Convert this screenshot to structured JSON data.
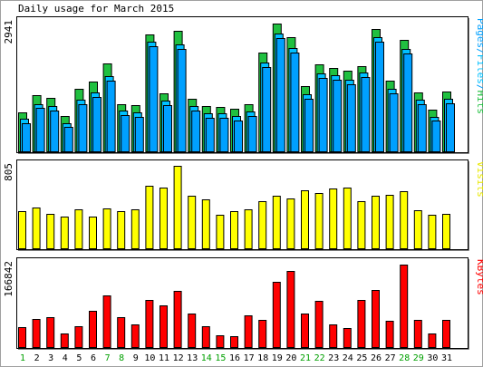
{
  "chart_data": [
    {
      "type": "bar",
      "title": "Daily usage for March 2015",
      "ylabel_max": "2941",
      "legend": [
        {
          "text": "Pages",
          "color": "#00a0ff"
        },
        {
          "text": "/",
          "color": "#00a0ff"
        },
        {
          "text": "Files",
          "color": "#00c0ff"
        },
        {
          "text": "/",
          "color": "#00a0ff"
        },
        {
          "text": "Hits",
          "color": "#20c040"
        }
      ],
      "ylim": [
        0,
        2941
      ],
      "categories": [
        "1",
        "2",
        "3",
        "4",
        "5",
        "6",
        "7",
        "8",
        "9",
        "10",
        "11",
        "12",
        "13",
        "14",
        "15",
        "16",
        "17",
        "18",
        "19",
        "20",
        "21",
        "22",
        "23",
        "24",
        "25",
        "26",
        "27",
        "28",
        "29",
        "30",
        "31"
      ],
      "series": [
        {
          "name": "Hits",
          "color": "#20c040",
          "values": [
            900,
            1280,
            1220,
            810,
            1420,
            1600,
            2000,
            1080,
            1060,
            2680,
            1330,
            2760,
            1200,
            1040,
            1020,
            970,
            1080,
            2260,
            2920,
            2600,
            1500,
            1980,
            1900,
            1840,
            1940,
            2800,
            1610,
            2540,
            1350,
            960,
            1370
          ]
        },
        {
          "name": "Files",
          "color": "#00c0ff",
          "values": [
            820,
            1170,
            1120,
            730,
            1260,
            1420,
            1800,
            1010,
            970,
            2580,
            1240,
            2520,
            1110,
            960,
            950,
            890,
            990,
            2120,
            2780,
            2440,
            1380,
            1860,
            1820,
            1710,
            1880,
            2700,
            1520,
            2430,
            1270,
            880,
            1290
          ]
        },
        {
          "name": "Pages",
          "color": "#00a0ff",
          "values": [
            800,
            1150,
            1100,
            720,
            1240,
            1400,
            1780,
            990,
            950,
            2560,
            1220,
            2500,
            1090,
            940,
            930,
            870,
            970,
            2100,
            2760,
            2420,
            1360,
            1840,
            1800,
            1690,
            1860,
            2680,
            1500,
            2410,
            1250,
            860,
            1270
          ]
        }
      ]
    },
    {
      "type": "bar",
      "ylabel_max": "805",
      "legend": [
        {
          "text": "Visits",
          "color": "#e8e800"
        }
      ],
      "ylim": [
        0,
        805
      ],
      "categories": [
        "1",
        "2",
        "3",
        "4",
        "5",
        "6",
        "7",
        "8",
        "9",
        "10",
        "11",
        "12",
        "13",
        "14",
        "15",
        "16",
        "17",
        "18",
        "19",
        "20",
        "21",
        "22",
        "23",
        "24",
        "25",
        "26",
        "27",
        "28",
        "29",
        "30",
        "31"
      ],
      "series": [
        {
          "name": "Visits",
          "color": "#ffff00",
          "values": [
            360,
            400,
            340,
            310,
            380,
            310,
            390,
            360,
            380,
            610,
            590,
            805,
            510,
            480,
            330,
            360,
            380,
            460,
            510,
            490,
            570,
            540,
            580,
            590,
            460,
            510,
            520,
            560,
            370,
            330,
            340
          ]
        }
      ]
    },
    {
      "type": "bar",
      "ylabel_max": "166842",
      "legend": [
        {
          "text": "KBytes",
          "color": "#ff0000"
        }
      ],
      "ylim": [
        0,
        166842
      ],
      "categories": [
        "1",
        "2",
        "3",
        "4",
        "5",
        "6",
        "7",
        "8",
        "9",
        "10",
        "11",
        "12",
        "13",
        "14",
        "15",
        "16",
        "17",
        "18",
        "19",
        "20",
        "21",
        "22",
        "23",
        "24",
        "25",
        "26",
        "27",
        "28",
        "29",
        "30",
        "31"
      ],
      "series": [
        {
          "name": "KBytes",
          "color": "#ff0000",
          "values": [
            40000,
            56000,
            59000,
            28000,
            42000,
            73000,
            103000,
            60000,
            45000,
            95000,
            83000,
            113000,
            67000,
            42000,
            23000,
            22000,
            64000,
            55000,
            131000,
            153000,
            67000,
            92000,
            45000,
            38000,
            95000,
            114000,
            52000,
            165000,
            55000,
            28000,
            54000
          ]
        }
      ]
    }
  ],
  "x_axis": {
    "labels": [
      "1",
      "2",
      "3",
      "4",
      "5",
      "6",
      "7",
      "8",
      "9",
      "10",
      "11",
      "12",
      "13",
      "14",
      "15",
      "16",
      "17",
      "18",
      "19",
      "20",
      "21",
      "22",
      "23",
      "24",
      "25",
      "26",
      "27",
      "28",
      "29",
      "30",
      "31"
    ],
    "weekend_days": [
      1,
      7,
      8,
      14,
      15,
      21,
      22,
      28,
      29
    ],
    "weekday_color": "#000000",
    "weekend_color": "#00a000"
  }
}
